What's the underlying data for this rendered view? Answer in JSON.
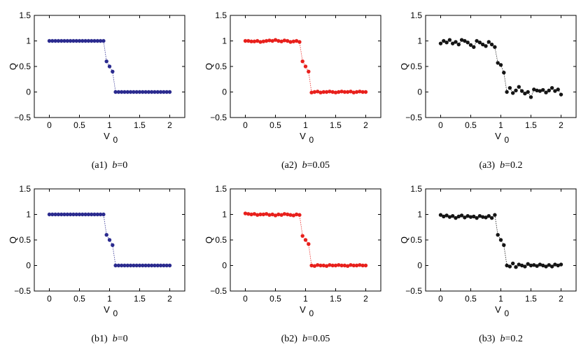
{
  "chart_data": [
    {
      "type": "scatter",
      "panel": "(a1)",
      "caption": {
        "prefix": "(a1)",
        "var": "b",
        "value": "=0"
      },
      "xlabel": "V",
      "xlabel_sub": "0",
      "ylabel": "Q",
      "xlim": [
        -0.25,
        2.25
      ],
      "ylim": [
        -0.5,
        1.5
      ],
      "xticks": [
        "0",
        "0.5",
        "1",
        "1.5",
        "2"
      ],
      "yticks": [
        "1.5",
        "1",
        "0.5",
        "0",
        "−0.5"
      ],
      "color": "#2b2b8f",
      "x": [
        0,
        0.05,
        0.1,
        0.15,
        0.2,
        0.25,
        0.3,
        0.35,
        0.4,
        0.45,
        0.5,
        0.55,
        0.6,
        0.65,
        0.7,
        0.75,
        0.8,
        0.85,
        0.9,
        0.95,
        1,
        1.05,
        1.1,
        1.15,
        1.2,
        1.25,
        1.3,
        1.35,
        1.4,
        1.45,
        1.5,
        1.55,
        1.6,
        1.65,
        1.7,
        1.75,
        1.8,
        1.85,
        1.9,
        1.95,
        2
      ],
      "y": [
        1,
        1,
        1,
        1,
        1,
        1,
        1,
        1,
        1,
        1,
        1,
        1,
        1,
        1,
        1,
        1,
        1,
        1,
        1,
        0.6,
        0.5,
        0.4,
        0,
        0,
        0,
        0,
        0,
        0,
        0,
        0,
        0,
        0,
        0,
        0,
        0,
        0,
        0,
        0,
        0,
        0,
        0
      ]
    },
    {
      "type": "scatter",
      "panel": "(a2)",
      "caption": {
        "prefix": "(a2)",
        "var": "b",
        "value": "=0.05"
      },
      "xlabel": "V",
      "xlabel_sub": "0",
      "ylabel": "Q",
      "xlim": [
        -0.25,
        2.25
      ],
      "ylim": [
        -0.5,
        1.5
      ],
      "xticks": [
        "0",
        "0.5",
        "1",
        "1.5",
        "2"
      ],
      "yticks": [
        "1.5",
        "1",
        "0.5",
        "0",
        "−0.5"
      ],
      "color": "#e8201c",
      "x": [
        0,
        0.05,
        0.1,
        0.15,
        0.2,
        0.25,
        0.3,
        0.35,
        0.4,
        0.45,
        0.5,
        0.55,
        0.6,
        0.65,
        0.7,
        0.75,
        0.8,
        0.85,
        0.9,
        0.95,
        1,
        1.05,
        1.1,
        1.15,
        1.2,
        1.25,
        1.3,
        1.35,
        1.4,
        1.45,
        1.5,
        1.55,
        1.6,
        1.65,
        1.7,
        1.75,
        1.8,
        1.85,
        1.9,
        1.95,
        2
      ],
      "y": [
        1,
        1,
        0.99,
        0.99,
        1,
        0.98,
        0.99,
        1,
        1.01,
        1,
        1.02,
        1,
        0.99,
        1.01,
        1,
        0.98,
        0.99,
        1,
        0.98,
        0.6,
        0.5,
        0.4,
        -0.01,
        0,
        0.01,
        -0.01,
        0,
        0,
        0.01,
        0,
        -0.01,
        0,
        0.01,
        0,
        0,
        0.01,
        -0.01,
        0,
        0.01,
        0,
        0
      ]
    },
    {
      "type": "scatter",
      "panel": "(a3)",
      "caption": {
        "prefix": "(a3)",
        "var": "b",
        "value": "=0.2"
      },
      "xlabel": "V",
      "xlabel_sub": "0",
      "ylabel": "Q",
      "xlim": [
        -0.25,
        2.25
      ],
      "ylim": [
        -0.5,
        1.5
      ],
      "xticks": [
        "0",
        "0.5",
        "1",
        "1.5",
        "2"
      ],
      "yticks": [
        "1.5",
        "1",
        "0.5",
        "0",
        "−0.5"
      ],
      "color": "#151515",
      "x": [
        0,
        0.05,
        0.1,
        0.15,
        0.2,
        0.25,
        0.3,
        0.35,
        0.4,
        0.45,
        0.5,
        0.55,
        0.6,
        0.65,
        0.7,
        0.75,
        0.8,
        0.85,
        0.9,
        0.95,
        1,
        1.05,
        1.1,
        1.15,
        1.2,
        1.25,
        1.3,
        1.35,
        1.4,
        1.45,
        1.5,
        1.55,
        1.6,
        1.65,
        1.7,
        1.75,
        1.8,
        1.85,
        1.9,
        1.95,
        2
      ],
      "y": [
        0.95,
        1,
        0.97,
        1.02,
        0.95,
        0.98,
        0.93,
        1.02,
        1,
        0.97,
        0.92,
        0.88,
        1,
        0.97,
        0.93,
        0.9,
        0.98,
        0.93,
        0.88,
        0.57,
        0.53,
        0.38,
        0,
        0.08,
        -0.02,
        0.03,
        0.1,
        0.02,
        -0.03,
        0,
        -0.1,
        0.05,
        0.03,
        0.02,
        0.04,
        -0.01,
        0.03,
        0.08,
        0.02,
        0.05,
        -0.05
      ]
    },
    {
      "type": "scatter",
      "panel": "(b1)",
      "caption": {
        "prefix": "(b1)",
        "var": "b",
        "value": "=0"
      },
      "xlabel": "V",
      "xlabel_sub": "0",
      "ylabel": "Q",
      "xlim": [
        -0.25,
        2.25
      ],
      "ylim": [
        -0.5,
        1.5
      ],
      "xticks": [
        "0",
        "0.5",
        "1",
        "1.5",
        "2"
      ],
      "yticks": [
        "1.5",
        "1",
        "0.5",
        "0",
        "−0.5"
      ],
      "color": "#2b2b8f",
      "x": [
        0,
        0.05,
        0.1,
        0.15,
        0.2,
        0.25,
        0.3,
        0.35,
        0.4,
        0.45,
        0.5,
        0.55,
        0.6,
        0.65,
        0.7,
        0.75,
        0.8,
        0.85,
        0.9,
        0.95,
        1,
        1.05,
        1.1,
        1.15,
        1.2,
        1.25,
        1.3,
        1.35,
        1.4,
        1.45,
        1.5,
        1.55,
        1.6,
        1.65,
        1.7,
        1.75,
        1.8,
        1.85,
        1.9,
        1.95,
        2
      ],
      "y": [
        1,
        1,
        1,
        1,
        1,
        1,
        1,
        1,
        1,
        1,
        1,
        1,
        1,
        1,
        1,
        1,
        1,
        1,
        1,
        0.6,
        0.5,
        0.4,
        0,
        0,
        0,
        0,
        0,
        0,
        0,
        0,
        0,
        0,
        0,
        0,
        0,
        0,
        0,
        0,
        0,
        0,
        0
      ]
    },
    {
      "type": "scatter",
      "panel": "(b2)",
      "caption": {
        "prefix": "(b2)",
        "var": "b",
        "value": "=0.05"
      },
      "xlabel": "V",
      "xlabel_sub": "0",
      "ylabel": "Q",
      "xlim": [
        -0.25,
        2.25
      ],
      "ylim": [
        -0.5,
        1.5
      ],
      "xticks": [
        "0",
        "0.5",
        "1",
        "1.5",
        "2"
      ],
      "yticks": [
        "1.5",
        "1",
        "0.5",
        "0",
        "−0.5"
      ],
      "color": "#e8201c",
      "x": [
        0,
        0.05,
        0.1,
        0.15,
        0.2,
        0.25,
        0.3,
        0.35,
        0.4,
        0.45,
        0.5,
        0.55,
        0.6,
        0.65,
        0.7,
        0.75,
        0.8,
        0.85,
        0.9,
        0.95,
        1,
        1.05,
        1.1,
        1.15,
        1.2,
        1.25,
        1.3,
        1.35,
        1.4,
        1.45,
        1.5,
        1.55,
        1.6,
        1.65,
        1.7,
        1.75,
        1.8,
        1.85,
        1.9,
        1.95,
        2
      ],
      "y": [
        1.02,
        1.01,
        1,
        1.01,
        0.99,
        1,
        1,
        1.01,
        0.99,
        1,
        0.98,
        1,
        0.99,
        1.01,
        1,
        0.99,
        0.98,
        1,
        0.99,
        0.58,
        0.5,
        0.42,
        0,
        -0.01,
        0.01,
        0,
        0,
        -0.01,
        0.01,
        0,
        0,
        0.01,
        0,
        0,
        -0.01,
        0.01,
        0,
        0,
        0.01,
        0,
        0
      ]
    },
    {
      "type": "scatter",
      "panel": "(b3)",
      "caption": {
        "prefix": "(b3)",
        "var": "b",
        "value": "=0.2"
      },
      "xlabel": "V",
      "xlabel_sub": "0",
      "ylabel": "Q",
      "xlim": [
        -0.25,
        2.25
      ],
      "ylim": [
        -0.5,
        1.5
      ],
      "xticks": [
        "0",
        "0.5",
        "1",
        "1.5",
        "2"
      ],
      "yticks": [
        "1.5",
        "1",
        "0.5",
        "0",
        "−0.5"
      ],
      "color": "#151515",
      "x": [
        0,
        0.05,
        0.1,
        0.15,
        0.2,
        0.25,
        0.3,
        0.35,
        0.4,
        0.45,
        0.5,
        0.55,
        0.6,
        0.65,
        0.7,
        0.75,
        0.8,
        0.85,
        0.9,
        0.95,
        1,
        1.05,
        1.1,
        1.15,
        1.2,
        1.25,
        1.3,
        1.35,
        1.4,
        1.45,
        1.5,
        1.55,
        1.6,
        1.65,
        1.7,
        1.75,
        1.8,
        1.85,
        1.9,
        1.95,
        2
      ],
      "y": [
        0.99,
        0.96,
        0.98,
        0.95,
        0.97,
        0.93,
        0.96,
        0.98,
        0.94,
        0.97,
        0.95,
        0.96,
        0.93,
        0.97,
        0.95,
        0.94,
        0.97,
        0.93,
        0.99,
        0.6,
        0.5,
        0.4,
        0,
        -0.02,
        0.04,
        -0.03,
        0.02,
        0,
        -0.02,
        0.03,
        0,
        0.01,
        -0.01,
        0.02,
        0,
        -0.02,
        0.01,
        -0.02,
        0.02,
        0,
        0.02
      ]
    }
  ]
}
